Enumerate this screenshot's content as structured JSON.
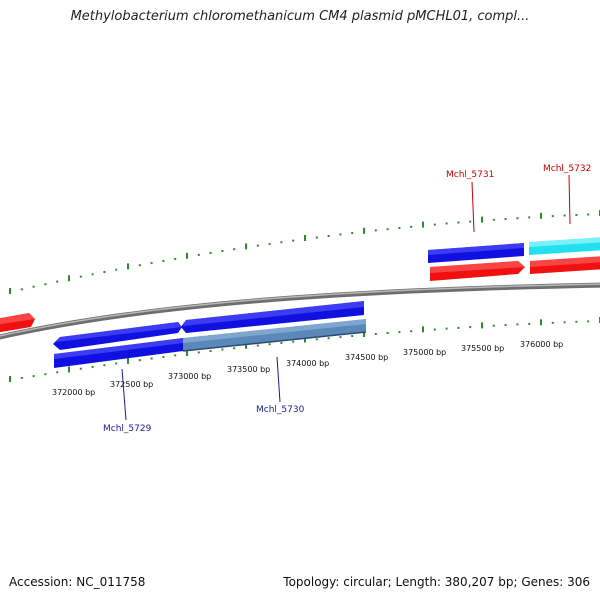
{
  "title": "Methylobacterium chloromethanicum CM4 plasmid pMCHL01, compl...",
  "footer": {
    "accession": "Accession: NC_011758",
    "summary": "Topology: circular; Length: 380,207 bp; Genes: 306"
  },
  "colors": {
    "backbone": "#8a8a8a",
    "tick": "#2e8b2e",
    "forward_gene": "#1010e0",
    "forward_gene_alt": "#22e0ee",
    "reverse_gene": "#f01010",
    "cds_steel": "#5a88b8",
    "label_blue": "#1a1aa0",
    "label_red": "#cc0000"
  },
  "ruler": {
    "labels": [
      {
        "text": "372000 bp"
      },
      {
        "text": "372500 bp"
      },
      {
        "text": "373000 bp"
      },
      {
        "text": "373500 bp"
      },
      {
        "text": "374000 bp"
      },
      {
        "text": "374500 bp"
      },
      {
        "text": "375000 bp"
      },
      {
        "text": "375500 bp"
      },
      {
        "text": "376000 bp"
      }
    ]
  },
  "genes": [
    {
      "name": "Mchl_5729",
      "strand": "inner"
    },
    {
      "name": "Mchl_5730",
      "strand": "inner"
    },
    {
      "name": "Mchl_5731",
      "strand": "outer"
    },
    {
      "name": "Mchl_5732",
      "strand": "outer"
    }
  ]
}
